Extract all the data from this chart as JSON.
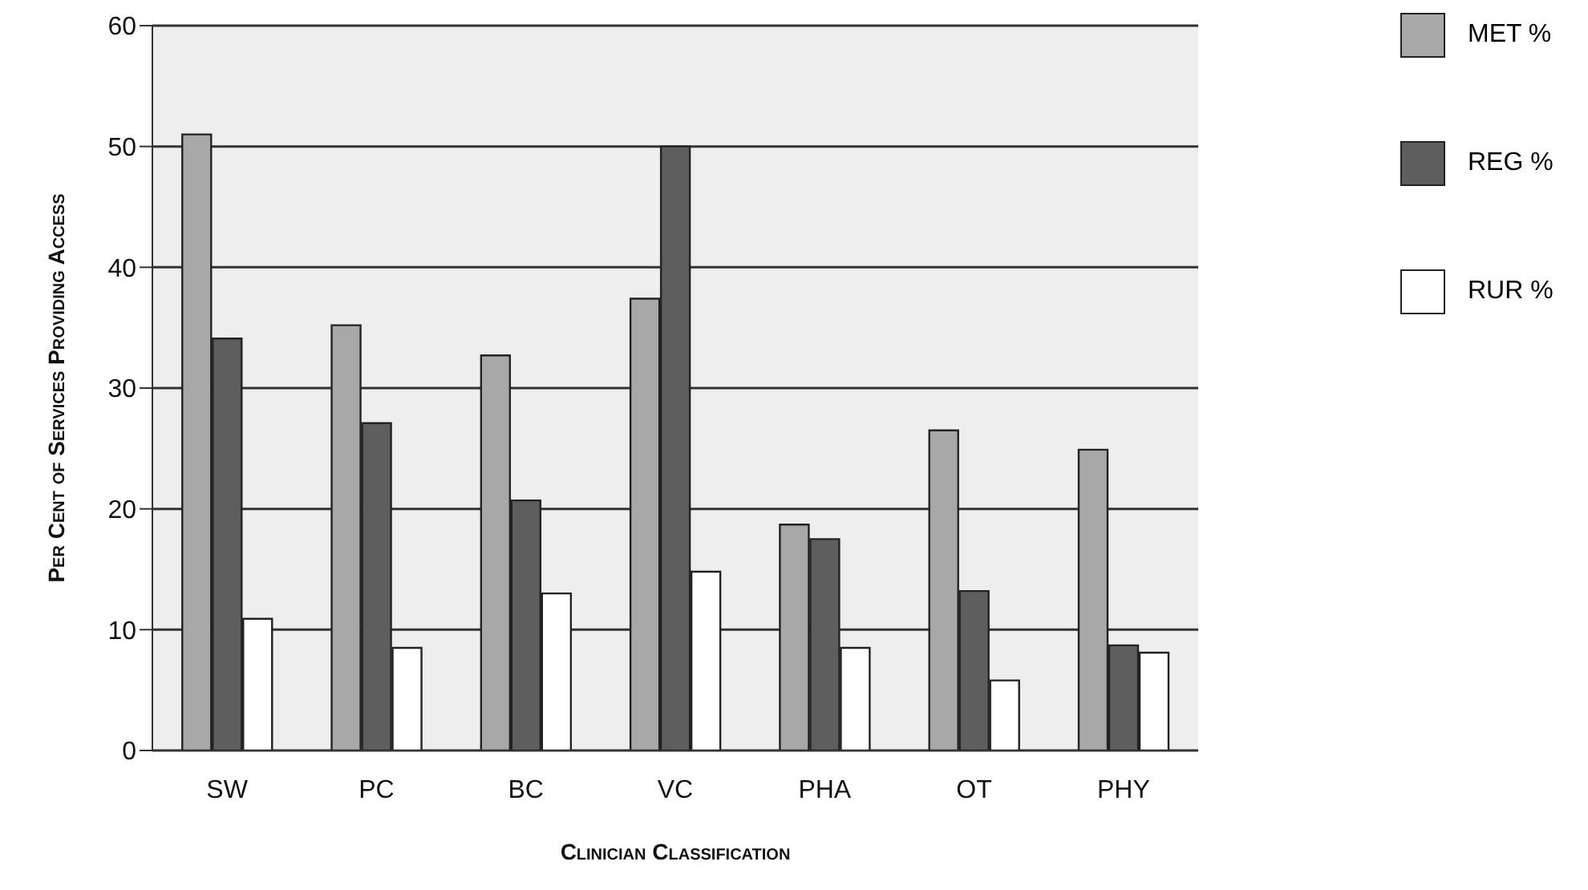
{
  "chart_data": {
    "type": "bar",
    "xlabel": "Clinician Classification",
    "ylabel": "Per Cent of Services Providing Access",
    "categories": [
      "SW",
      "PC",
      "BC",
      "VC",
      "PHA",
      "OT",
      "PHY"
    ],
    "series": [
      {
        "name": "MET %",
        "color": "#a8a8a8",
        "values": [
          51.0,
          35.2,
          32.7,
          37.4,
          18.7,
          26.5,
          24.9
        ]
      },
      {
        "name": "REG %",
        "color": "#5e5e5e",
        "values": [
          34.1,
          27.1,
          20.7,
          50.0,
          17.5,
          13.2,
          8.7
        ]
      },
      {
        "name": "RUR %",
        "color": "#ffffff",
        "values": [
          10.9,
          8.5,
          13.0,
          14.8,
          8.5,
          5.8,
          8.1
        ]
      }
    ],
    "ylim": [
      0,
      60
    ],
    "yticks": [
      0,
      10,
      20,
      30,
      40,
      50,
      60
    ],
    "grid": "y",
    "legend": "top right"
  }
}
